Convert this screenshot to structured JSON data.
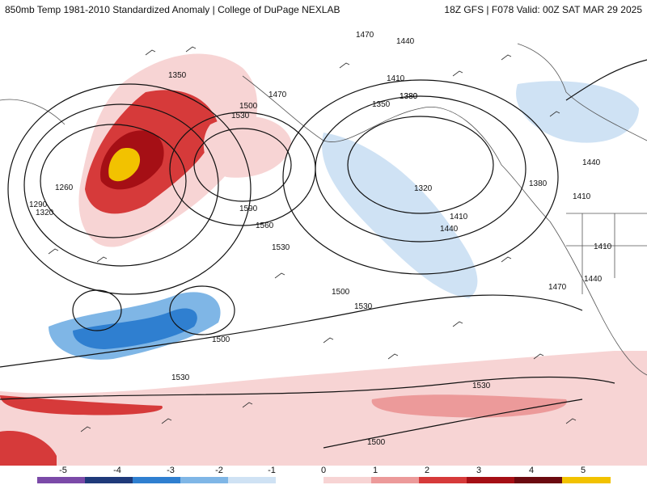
{
  "header": {
    "title": "850mb Temp 1981-2010 Standardized Anomaly | College of DuPage NEXLAB",
    "run_info": "18Z GFS | F078 Valid: 00Z SAT MAR 29 2025"
  },
  "contour_labels": [
    "1470",
    "1440",
    "1410",
    "1380",
    "1350",
    "1320",
    "1290",
    "1260",
    "1530",
    "1500",
    "1590",
    "1560",
    "1470",
    "1440",
    "1410",
    "1380",
    "1350",
    "1320",
    "1500",
    "1530",
    "1530",
    "1500",
    "1530",
    "1530",
    "1500",
    "1440",
    "1410",
    "1470",
    "1440",
    "1410",
    "1380"
  ],
  "colorbar": {
    "ticks": [
      "-5",
      "-4",
      "-3",
      "-2",
      "-1",
      "0",
      "1",
      "2",
      "3",
      "4",
      "5"
    ],
    "colors": [
      "#7b4aa8",
      "#1f3a7a",
      "#2f7fd0",
      "#7fb6e6",
      "#cfe2f4",
      "#ffffff",
      "#f7d4d4",
      "#ec9a9a",
      "#d63a3a",
      "#a50f15",
      "#6b0a10",
      "#f2c200"
    ]
  }
}
